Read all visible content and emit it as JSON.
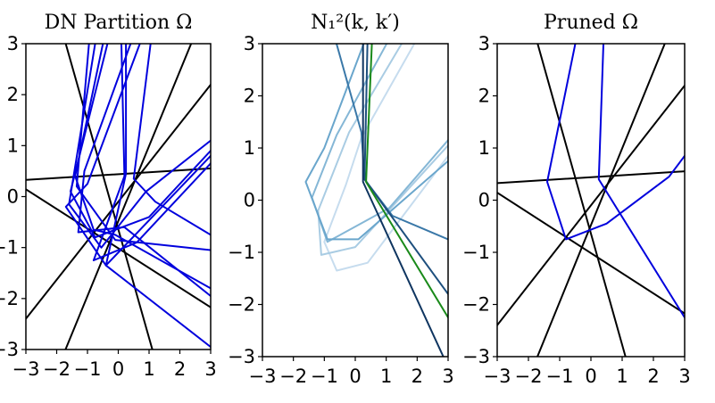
{
  "chart_data": [
    {
      "type": "line",
      "title": "DN Partition Ω",
      "xlim": [
        -3,
        3
      ],
      "ylim": [
        -3,
        3
      ],
      "xticks": [
        -3,
        -2,
        -1,
        0,
        1,
        2,
        3
      ],
      "yticks": [
        -3,
        -2,
        -1,
        0,
        1,
        2,
        3
      ],
      "xtick_labels": [
        "−3",
        "−2",
        "−1",
        "0",
        "1",
        "2",
        "3"
      ],
      "ytick_labels": [
        "−3",
        "−2",
        "−1",
        "0",
        "1",
        "2",
        "3"
      ],
      "show_xtick_labels": true,
      "show_ytick_labels": true,
      "series": [
        {
          "color": "#000000",
          "points": [
            [
              -3.2,
              0.32
            ],
            [
              3.2,
              0.56
            ]
          ]
        },
        {
          "color": "#000000",
          "points": [
            [
              -3.2,
              -2.55
            ],
            [
              3.2,
              2.35
            ]
          ]
        },
        {
          "color": "#000000",
          "points": [
            [
              -3.2,
              0.22
            ],
            [
              3.2,
              -2.25
            ]
          ]
        },
        {
          "color": "#000000",
          "points": [
            [
              -1.8,
              3.2
            ],
            [
              1.2,
              -3.2
            ]
          ]
        },
        {
          "color": "#000000",
          "points": [
            [
              -1.85,
              -3.2
            ],
            [
              2.5,
              3.2
            ]
          ]
        },
        {
          "color": "#0000dd",
          "points": [
            [
              -0.5,
              3.0
            ],
            [
              -1.4,
              0.4
            ],
            [
              -0.8,
              -0.65
            ],
            [
              -0.1,
              -0.75
            ],
            [
              3.0,
              -1.8
            ]
          ]
        },
        {
          "color": "#0000dd",
          "points": [
            [
              -0.35,
              3.0
            ],
            [
              -1.55,
              0.1
            ],
            [
              -0.75,
              -0.8
            ],
            [
              1.0,
              -0.4
            ],
            [
              3.0,
              0.9
            ]
          ]
        },
        {
          "color": "#0000dd",
          "points": [
            [
              0.4,
              3.0
            ],
            [
              -1.1,
              0.5
            ],
            [
              -1.3,
              -0.7
            ],
            [
              0.2,
              -0.6
            ],
            [
              3.0,
              -1.95
            ]
          ]
        },
        {
          "color": "#0000dd",
          "points": [
            [
              -0.75,
              3.0
            ],
            [
              -1.6,
              -0.15
            ],
            [
              -0.55,
              -1.0
            ],
            [
              0.9,
              0.1
            ],
            [
              3.0,
              1.1
            ]
          ]
        },
        {
          "color": "#0000dd",
          "points": [
            [
              0.7,
              3.0
            ],
            [
              -1.0,
              0.25
            ],
            [
              -1.7,
              -0.2
            ],
            [
              -0.4,
              -1.35
            ],
            [
              3.0,
              0.8
            ]
          ]
        },
        {
          "color": "#0000dd",
          "points": [
            [
              0.25,
              3.0
            ],
            [
              0.25,
              0.45
            ],
            [
              -0.4,
              -1.35
            ],
            [
              3.0,
              -2.95
            ]
          ]
        },
        {
          "color": "#0000dd",
          "points": [
            [
              1.05,
              3.0
            ],
            [
              0.5,
              0.35
            ],
            [
              1.2,
              -0.1
            ],
            [
              3.0,
              -0.75
            ]
          ]
        },
        {
          "color": "#0000dd",
          "points": [
            [
              0.1,
              3.0
            ],
            [
              0.2,
              0.4
            ],
            [
              -0.8,
              -1.25
            ],
            [
              0.6,
              -0.9
            ],
            [
              3.0,
              0.65
            ]
          ]
        },
        {
          "color": "#0000dd",
          "points": [
            [
              -0.95,
              3.0
            ],
            [
              -1.35,
              0.2
            ],
            [
              -0.1,
              -0.85
            ],
            [
              3.0,
              -1.05
            ]
          ]
        }
      ]
    },
    {
      "type": "line",
      "title": "N₁²(k, k′)",
      "xlim": [
        -3,
        3
      ],
      "ylim": [
        -3,
        3
      ],
      "xticks": [
        -3,
        -2,
        -1,
        0,
        1,
        2,
        3
      ],
      "yticks": [
        -3,
        -2,
        -1,
        0,
        1,
        2,
        3
      ],
      "xtick_labels": [
        "−3",
        "−2",
        "−1",
        "0",
        "1",
        "2",
        "3"
      ],
      "ytick_labels": [
        "−3",
        "−2",
        "−1",
        "0",
        "1",
        "2",
        "3"
      ],
      "show_xtick_labels": true,
      "show_ytick_labels": true,
      "series": [
        {
          "color": "#c6dcee",
          "points": [
            [
              2.1,
              3.2
            ],
            [
              0.2,
              1.2
            ],
            [
              -0.3,
              0.3
            ],
            [
              -1.0,
              -0.8
            ],
            [
              -0.6,
              -1.35
            ],
            [
              0.4,
              -1.2
            ],
            [
              3.0,
              0.85
            ]
          ]
        },
        {
          "color": "#a9cce3",
          "points": [
            [
              1.7,
              3.2
            ],
            [
              -0.2,
              1.3
            ],
            [
              -1.2,
              -0.2
            ],
            [
              -1.1,
              -1.05
            ],
            [
              0.0,
              -0.9
            ],
            [
              3.0,
              1.05
            ]
          ]
        },
        {
          "color": "#85b7d6",
          "points": [
            [
              1.2,
              3.2
            ],
            [
              -0.6,
              1.25
            ],
            [
              -1.4,
              0.05
            ],
            [
              -0.9,
              -0.8
            ],
            [
              1.1,
              -0.15
            ],
            [
              3.0,
              1.15
            ]
          ]
        },
        {
          "color": "#6aa6cc",
          "points": [
            [
              0.4,
              3.2
            ],
            [
              -1.0,
              1.0
            ],
            [
              -1.6,
              0.35
            ],
            [
              -0.9,
              -0.75
            ],
            [
              0.1,
              -0.75
            ],
            [
              3.0,
              0.75
            ]
          ]
        },
        {
          "color": "#3a78a8",
          "points": [
            [
              -0.7,
              3.2
            ],
            [
              0.2,
              1.3
            ],
            [
              0.3,
              0.4
            ],
            [
              1.2,
              -0.3
            ],
            [
              3.0,
              -0.75
            ]
          ]
        },
        {
          "color": "#1d4f7e",
          "points": [
            [
              0.4,
              3.2
            ],
            [
              0.3,
              0.4
            ],
            [
              3.0,
              -1.8
            ]
          ]
        },
        {
          "color": "#0f3560",
          "points": [
            [
              0.25,
              3.2
            ],
            [
              0.25,
              0.35
            ],
            [
              3.0,
              -3.2
            ]
          ]
        },
        {
          "color": "#1a8a1a",
          "points": [
            [
              0.55,
              3.2
            ],
            [
              0.35,
              0.35
            ],
            [
              3.0,
              -2.25
            ]
          ]
        }
      ]
    },
    {
      "type": "line",
      "title": "Pruned Ω",
      "xlim": [
        -3,
        3
      ],
      "ylim": [
        -3,
        3
      ],
      "xticks": [
        -3,
        -2,
        -1,
        0,
        1,
        2,
        3
      ],
      "yticks": [
        -3,
        -2,
        -1,
        0,
        1,
        2,
        3
      ],
      "xtick_labels": [
        "−3",
        "−2",
        "−1",
        "0",
        "1",
        "2",
        "3"
      ],
      "ytick_labels": [
        "−3",
        "−2",
        "−1",
        "0",
        "1",
        "2",
        "3"
      ],
      "show_xtick_labels": true,
      "show_ytick_labels": true,
      "series": [
        {
          "color": "#000000",
          "points": [
            [
              -3.2,
              0.32
            ],
            [
              3.2,
              0.56
            ]
          ]
        },
        {
          "color": "#000000",
          "points": [
            [
              -3.2,
              -2.55
            ],
            [
              3.2,
              2.35
            ]
          ]
        },
        {
          "color": "#000000",
          "points": [
            [
              -3.2,
              0.22
            ],
            [
              3.2,
              -2.25
            ]
          ]
        },
        {
          "color": "#000000",
          "points": [
            [
              -1.8,
              3.2
            ],
            [
              1.2,
              -3.2
            ]
          ]
        },
        {
          "color": "#000000",
          "points": [
            [
              -1.85,
              -3.2
            ],
            [
              2.5,
              3.2
            ]
          ]
        },
        {
          "color": "#0000dd",
          "points": [
            [
              -0.5,
              3.0
            ],
            [
              -1.4,
              0.35
            ],
            [
              -0.8,
              -0.75
            ],
            [
              0.5,
              -0.45
            ],
            [
              2.5,
              0.45
            ],
            [
              3.0,
              0.85
            ]
          ]
        },
        {
          "color": "#0000dd",
          "points": [
            [
              0.4,
              3.0
            ],
            [
              0.25,
              0.4
            ],
            [
              3.0,
              -2.25
            ]
          ]
        }
      ]
    }
  ]
}
